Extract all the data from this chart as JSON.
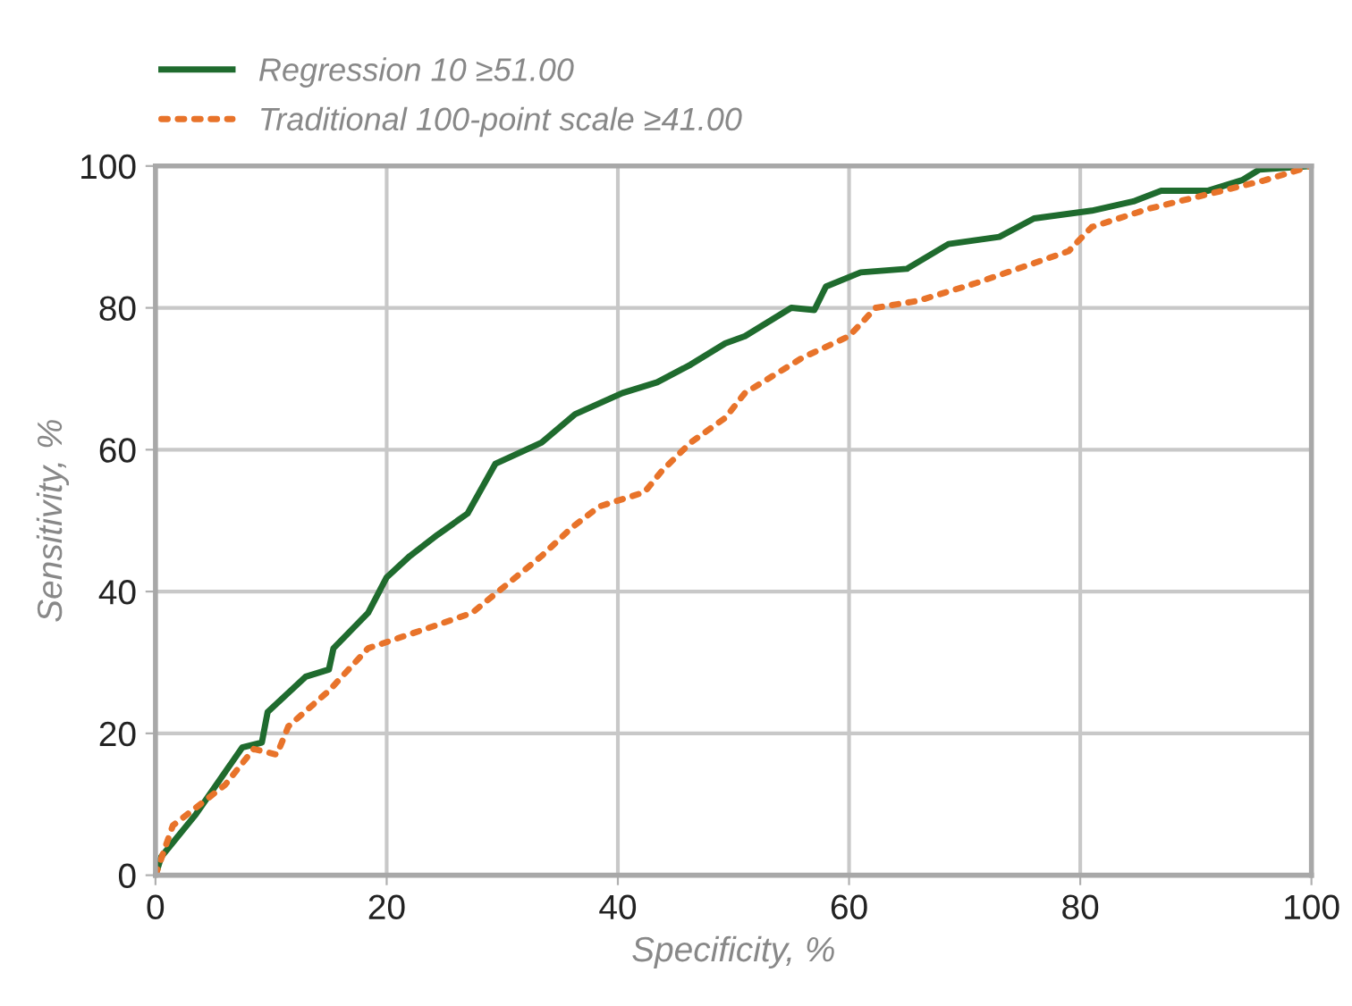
{
  "chart_data": {
    "type": "line",
    "xlabel": "Specificity, %",
    "ylabel": "Sensitivity, %",
    "xlim": [
      0,
      100
    ],
    "ylim": [
      0,
      100
    ],
    "xticks": [
      0,
      20,
      40,
      60,
      80,
      100
    ],
    "yticks": [
      0,
      20,
      40,
      60,
      80,
      100
    ],
    "grid": true,
    "legend": "top left",
    "series": [
      {
        "name": "Regression 10 ≥51.00",
        "color": "#1f6b2e",
        "line_style": "solid",
        "x": [
          0,
          0.5,
          3.5,
          7.5,
          9.2,
          9.7,
          13,
          15,
          15.4,
          18.4,
          20,
          22,
          24.4,
          27,
          29.4,
          33.4,
          36.3,
          40.4,
          43.4,
          46.3,
          49.3,
          51,
          55,
          57,
          58,
          61,
          65,
          68.6,
          73,
          76,
          81,
          84.6,
          87,
          91,
          94,
          95.5,
          100
        ],
        "values": [
          0,
          2.6,
          8.6,
          18,
          18.7,
          23,
          28,
          29,
          32,
          37,
          42,
          45,
          48,
          51,
          58,
          61,
          65,
          68,
          69.5,
          72,
          75,
          76,
          80,
          79.7,
          83,
          85,
          85.5,
          89,
          90,
          92.6,
          93.7,
          95,
          96.5,
          96.5,
          98,
          99.5,
          100
        ]
      },
      {
        "name": "Traditional 100-point scale ≥41.00",
        "color": "#e8732a",
        "line_style": "dotted",
        "x": [
          0,
          1.5,
          6,
          8.5,
          10.5,
          11.5,
          15,
          18.4,
          23.5,
          27.4,
          30.4,
          33.4,
          36,
          38.4,
          42.3,
          43.8,
          46.3,
          49.3,
          51,
          56,
          60,
          62.3,
          66,
          71,
          76,
          79,
          81,
          86,
          91,
          96,
          100
        ],
        "values": [
          0,
          7,
          12.7,
          17.8,
          17,
          21,
          26,
          32,
          34.8,
          37,
          41,
          45,
          49,
          52,
          54,
          57,
          61,
          64.5,
          68,
          73,
          76,
          80,
          81,
          83.5,
          86.3,
          88,
          91.4,
          94,
          96,
          98,
          100
        ]
      }
    ]
  }
}
